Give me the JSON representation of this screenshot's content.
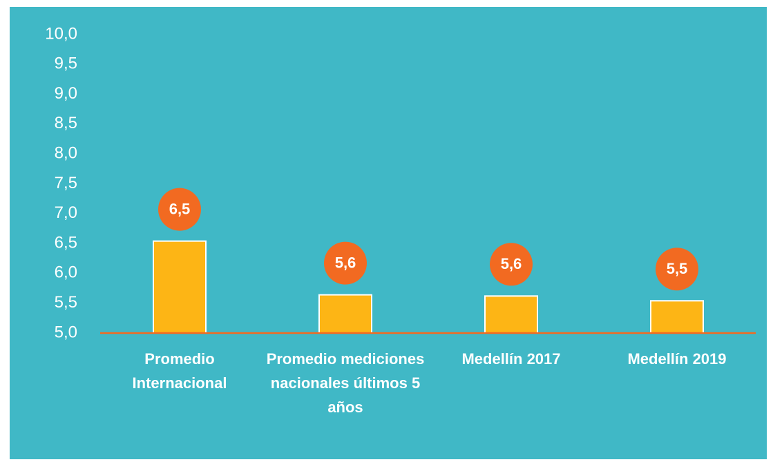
{
  "chart_data": {
    "type": "bar",
    "categories": [
      "Promedio Internacional",
      "Promedio mediciones nacionales últimos 5 años",
      "Medellín 2017",
      "Medellín 2019"
    ],
    "values": [
      6.54,
      5.64,
      5.62,
      5.54
    ],
    "value_labels": [
      "6,5",
      "5,6",
      "5,6",
      "5,5"
    ],
    "color": "#fdb515",
    "label_color": "#f26a21",
    "ylim": [
      5,
      10
    ],
    "yticks": [
      {
        "value": 5,
        "label": "5,0"
      },
      {
        "value": 5.5,
        "label": "5,5"
      },
      {
        "value": 6,
        "label": "6,0"
      },
      {
        "value": 6.5,
        "label": "6,5"
      },
      {
        "value": 7,
        "label": "7,0"
      },
      {
        "value": 7.5,
        "label": "7,5"
      },
      {
        "value": 8,
        "label": "8,0"
      },
      {
        "value": 8.5,
        "label": "8,5"
      },
      {
        "value": 9,
        "label": "9,0"
      },
      {
        "value": 9.5,
        "label": "9,5"
      },
      {
        "value": 10,
        "label": "10,0"
      }
    ],
    "grid": false
  }
}
